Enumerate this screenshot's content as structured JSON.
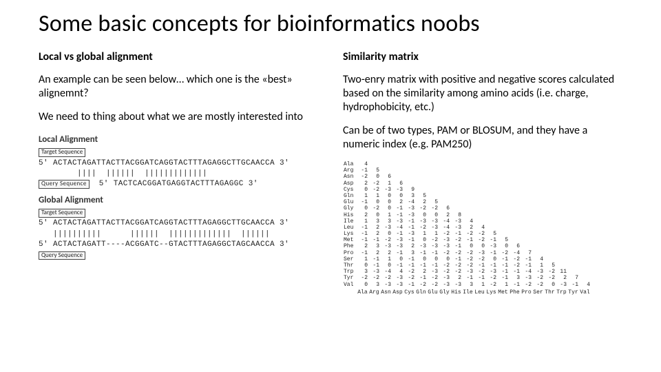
{
  "title": "Some basic concepts for bioinformatics noobs",
  "left": {
    "heading": "Local vs global alignment",
    "p1": "An example can be seen below… which one is the «best» alignemnt?",
    "p2": "We need to thing about what we are mostly interested into",
    "local": {
      "title": "Local Alignment",
      "target_label": "Target Sequence",
      "query_label": "Query Sequence",
      "target": "5' ACTACTAGATTACTTACGGATCAGGTACTTTAGAGGCTTGCAACCA 3'",
      "match": "        ||||  ||||||  |||||||||||||  ",
      "query": "5' TACTCACGGATGAGGTACTTTAGAGGC 3'"
    },
    "global": {
      "title": "Global Alignment",
      "target_label": "Target Sequence",
      "query_label": "Query Sequence",
      "target": "5' ACTACTAGATTACTTACGGATCAGGTACTTTAGAGGCTTGCAACCA 3'",
      "match": "   ||||||||||      ||||||  |||||||||||||  |||||| ",
      "query": "5' ACTACTAGATT----ACGGATC--GTACTTTAGAGGCTAGCAACCA 3'"
    }
  },
  "right": {
    "heading": "Similarity matrix",
    "p1": "Two-enry matrix with positive and negative scores calculated based on the similarity among amino acids (i.e. charge, hydrophobicity, etc.)",
    "p2": "Can be of two types, PAM or BLOSUM, and they have a numeric index (e.g. PAM250)",
    "matrix": {
      "rows": [
        "Ala",
        "Arg",
        "Asn",
        "Asp",
        "Cys",
        "Gln",
        "Glu",
        "Gly",
        "His",
        "Ile",
        "Leu",
        "Lys",
        "Met",
        "Phe",
        "Pro",
        "Ser",
        "Thr",
        "Trp",
        "Tyr",
        "Val"
      ],
      "cols": [
        "Ala",
        "Arg",
        "Asn",
        "Asp",
        "Cys",
        "Gln",
        "Glu",
        "Gly",
        "His",
        "Ile",
        "Leu",
        "Lys",
        "Met",
        "Phe",
        "Pro",
        "Ser",
        "Thr",
        "Trp",
        "Tyr",
        "Val"
      ],
      "values": [
        [
          4
        ],
        [
          -1,
          5
        ],
        [
          -2,
          0,
          6
        ],
        [
          2,
          -2,
          1,
          6
        ],
        [
          0,
          -2,
          -3,
          -3,
          9
        ],
        [
          1,
          1,
          0,
          0,
          3,
          5
        ],
        [
          -1,
          0,
          0,
          2,
          -4,
          2,
          5
        ],
        [
          0,
          -2,
          0,
          -1,
          -3,
          -2,
          -2,
          6
        ],
        [
          2,
          0,
          1,
          -1,
          -3,
          0,
          0,
          2,
          8
        ],
        [
          1,
          3,
          3,
          -3,
          -1,
          -3,
          -3,
          -4,
          -3,
          4
        ],
        [
          -1,
          2,
          -3,
          -4,
          -1,
          -2,
          -3,
          -4,
          -3,
          2,
          4
        ],
        [
          -1,
          2,
          0,
          -1,
          -3,
          1,
          1,
          -2,
          -1,
          -2,
          -2,
          5
        ],
        [
          -1,
          -1,
          -2,
          -3,
          -1,
          0,
          -2,
          -3,
          -2,
          -1,
          -2,
          -1,
          5
        ],
        [
          2,
          3,
          -3,
          -3,
          2,
          -3,
          -3,
          -3,
          -1,
          0,
          0,
          -3,
          0,
          6
        ],
        [
          -1,
          2,
          2,
          -1,
          3,
          -1,
          -1,
          -2,
          -2,
          -2,
          -3,
          -1,
          -2,
          -4,
          7
        ],
        [
          1,
          -1,
          1,
          0,
          -1,
          0,
          0,
          0,
          -1,
          -2,
          -2,
          0,
          -1,
          -2,
          -1,
          4
        ],
        [
          0,
          -1,
          0,
          -1,
          -1,
          -1,
          -1,
          -2,
          -2,
          -2,
          -1,
          -1,
          -1,
          -2,
          -1,
          1,
          5
        ],
        [
          3,
          -3,
          -4,
          4,
          -2,
          2,
          -3,
          -2,
          -2,
          -3,
          -2,
          -3,
          -1,
          -1,
          -4,
          -3,
          -2,
          11
        ],
        [
          -2,
          -2,
          -2,
          -3,
          -2,
          -1,
          -2,
          -3,
          2,
          -1,
          -1,
          -2,
          -1,
          3,
          -3,
          -2,
          -2,
          2,
          7
        ],
        [
          0,
          3,
          -3,
          -3,
          -1,
          -2,
          -2,
          -3,
          -3,
          3,
          1,
          -2,
          1,
          -1,
          -2,
          -2,
          0,
          -3,
          -1,
          4
        ]
      ]
    }
  }
}
